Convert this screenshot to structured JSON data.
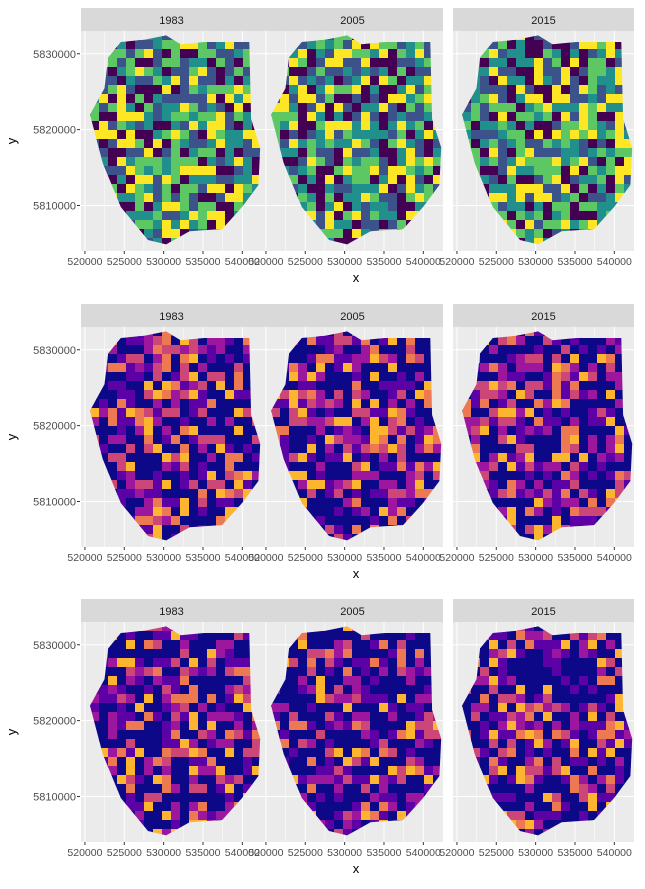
{
  "chart_data": [
    {
      "type": "heatmap",
      "facet_labels": [
        "1983",
        "2005",
        "2015"
      ],
      "xlabel": "x",
      "ylabel": "y",
      "x_ticks": [
        520000,
        525000,
        530000,
        535000,
        540000
      ],
      "y_ticks": [
        5810000,
        5820000,
        5830000
      ],
      "xlim": [
        519500,
        542500
      ],
      "ylim": [
        5804000,
        5833000
      ],
      "palette": "viridis",
      "grid": true
    },
    {
      "type": "heatmap",
      "facet_labels": [
        "1983",
        "2005",
        "2015"
      ],
      "xlabel": "x",
      "ylabel": "y",
      "x_ticks": [
        520000,
        525000,
        530000,
        535000,
        540000
      ],
      "y_ticks": [
        5810000,
        5820000,
        5830000
      ],
      "xlim": [
        519500,
        542500
      ],
      "ylim": [
        5804000,
        5833000
      ],
      "palette": "plasma",
      "grid": true
    },
    {
      "type": "heatmap",
      "facet_labels": [
        "1983",
        "2005",
        "2015"
      ],
      "xlabel": "x",
      "ylabel": "y",
      "x_ticks": [
        520000,
        525000,
        530000,
        535000,
        540000
      ],
      "y_ticks": [
        5810000,
        5820000,
        5830000
      ],
      "xlim": [
        519500,
        542500
      ],
      "ylim": [
        5804000,
        5833000
      ],
      "palette": "plasma",
      "grid": true
    }
  ],
  "colors": {
    "panel_bg": "#ebebeb",
    "strip_bg": "#d9d9d9",
    "grid": "#ffffff",
    "text": "#4d4d4d",
    "viridis": [
      "#440154",
      "#3b528b",
      "#21908c",
      "#5dc863",
      "#fde725"
    ],
    "plasma": [
      "#0d0887",
      "#5c01a6",
      "#9c179e",
      "#cc4778",
      "#ed7953",
      "#fdb42f"
    ]
  }
}
